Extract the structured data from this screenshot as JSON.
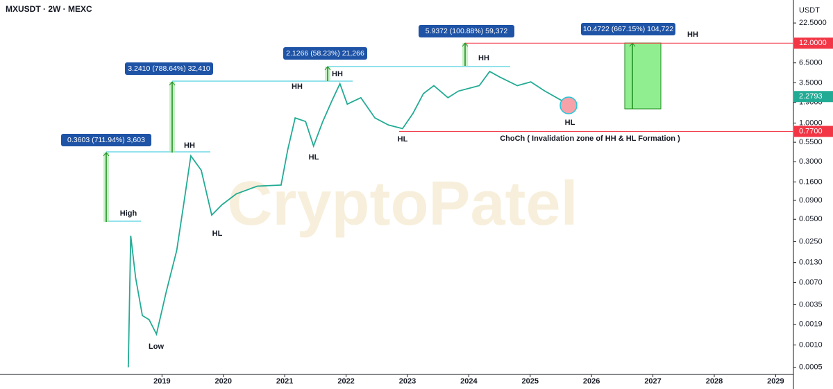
{
  "chart_data": {
    "type": "line",
    "title": "MXUSDT · 2W · MEXC",
    "y_axis_label": "USDT",
    "log_scale": true,
    "watermark": "CryptoPatel",
    "color": "#22ab94",
    "x": [
      2018.45,
      2018.49,
      2018.57,
      2018.68,
      2018.79,
      2018.91,
      2019.07,
      2019.24,
      2019.36,
      2019.47,
      2019.64,
      2019.81,
      2019.98,
      2020.21,
      2020.55,
      2020.94,
      2021.05,
      2021.17,
      2021.34,
      2021.47,
      2021.62,
      2021.77,
      2021.9,
      2022.02,
      2022.24,
      2022.47,
      2022.69,
      2022.92,
      2023.09,
      2023.26,
      2023.43,
      2023.66,
      2023.83,
      2024.17,
      2024.34,
      2024.5,
      2024.79,
      2025.01,
      2025.24,
      2025.52
    ],
    "values": [
      0.0005,
      0.03,
      0.0081,
      0.0025,
      0.0022,
      0.0014,
      0.0053,
      0.019,
      0.087,
      0.36,
      0.23,
      0.057,
      0.079,
      0.11,
      0.14,
      0.145,
      0.44,
      1.17,
      1.05,
      0.49,
      1.05,
      2.0,
      3.4,
      1.8,
      2.2,
      1.17,
      0.94,
      0.84,
      1.35,
      2.5,
      3.2,
      2.2,
      2.7,
      3.2,
      4.97,
      4.2,
      3.2,
      3.6,
      2.7,
      2.0
    ],
    "xlim": [
      2016.36,
      2029.29
    ],
    "xticks": [
      2019,
      2020,
      2021,
      2022,
      2023,
      2024,
      2025,
      2026,
      2027,
      2028,
      2029
    ],
    "ylim": [
      0.0004,
      46
    ],
    "yticks": [
      {
        "value": 22.5,
        "label": "22.5000"
      },
      {
        "value": 6.5,
        "label": "6.5000"
      },
      {
        "value": 3.5,
        "label": "3.5000"
      },
      {
        "value": 1.9,
        "label": "1.9000"
      },
      {
        "value": 1.0,
        "label": "1.0000"
      },
      {
        "value": 0.55,
        "label": "0.5500"
      },
      {
        "value": 0.3,
        "label": "0.3000"
      },
      {
        "value": 0.16,
        "label": "0.1600"
      },
      {
        "value": 0.09,
        "label": "0.0900"
      },
      {
        "value": 0.05,
        "label": "0.0500"
      },
      {
        "value": 0.025,
        "label": "0.0250"
      },
      {
        "value": 0.013,
        "label": "0.0130"
      },
      {
        "value": 0.007,
        "label": "0.0070"
      },
      {
        "value": 0.0035,
        "label": "0.0035"
      },
      {
        "value": 0.0019,
        "label": "0.0019"
      },
      {
        "value": 0.001,
        "label": "0.0010"
      },
      {
        "value": 0.0005,
        "label": "0.0005"
      }
    ],
    "levels": [
      {
        "value": 12,
        "label": "12.0000",
        "color": "#f23645"
      },
      {
        "value": 0.77,
        "label": "0.7700",
        "color": "#f23645"
      }
    ],
    "last_price": {
      "value": 2.2793,
      "label": "2.2793",
      "color": "#22ab94"
    },
    "annotations": [
      "High",
      "Low",
      "HH",
      "HL",
      "HH",
      "HL",
      "HH",
      "HL",
      "HH",
      "HL",
      "HH",
      "ChoCh ( Invalidation zone of HH & HL Formation )"
    ],
    "measurements": [
      "0.3603 (711.94%) 3,603",
      "3.2410 (788.64%) 32,410",
      "2.1266 (58.23%) 21,266",
      "5.9372 (100.88%) 59,372",
      "10.4722 (667.15%) 104,722"
    ]
  }
}
